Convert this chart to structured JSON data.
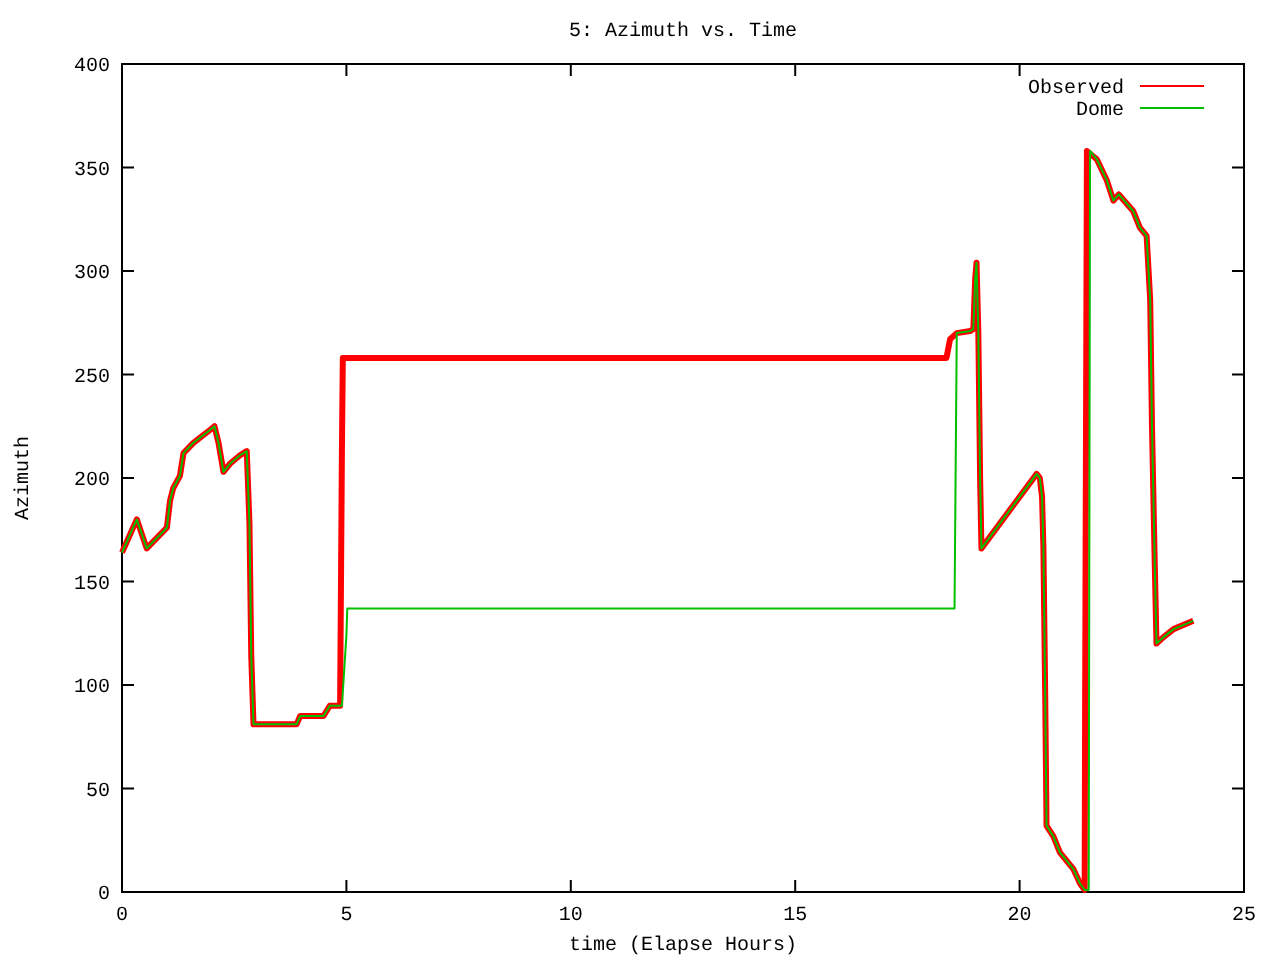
{
  "chart_data": {
    "type": "line",
    "title": "5: Azimuth vs. Time",
    "xlabel": "time (Elapse Hours)",
    "ylabel": "Azimuth",
    "xlim": [
      0,
      25
    ],
    "xticks": [
      0,
      5,
      10,
      15,
      20,
      25
    ],
    "ylim": [
      0,
      400
    ],
    "yticks": [
      0,
      50,
      100,
      150,
      200,
      250,
      300,
      350,
      400
    ],
    "grid": false,
    "legend": "top right",
    "line_style": "solid",
    "marker": "none",
    "series": [
      {
        "name": "Observed",
        "color": "#ff0000",
        "x": [
          0,
          0.33,
          0.55,
          1.0,
          1.07,
          1.14,
          1.29,
          1.37,
          1.59,
          1.89,
          2.06,
          2.15,
          2.26,
          2.41,
          2.63,
          2.78,
          2.84,
          2.88,
          2.93,
          3.89,
          3.97,
          4.49,
          4.63,
          4.86,
          4.9,
          4.92,
          18.37,
          18.45,
          18.6,
          18.9,
          18.97,
          19.01,
          19.04,
          19.08,
          19.12,
          19.15,
          20.38,
          20.45,
          20.5,
          20.53,
          20.57,
          20.6,
          20.75,
          20.9,
          21.2,
          21.35,
          21.45,
          21.46,
          21.5,
          21.72,
          21.94,
          22.09,
          22.21,
          22.53,
          22.68,
          22.83,
          22.91,
          22.95,
          23.01,
          23.05,
          23.2,
          23.43,
          23.87
        ],
        "values": [
          164,
          180,
          166,
          176,
          189,
          195,
          201,
          212,
          217,
          222,
          225,
          217,
          203,
          207,
          211,
          213,
          178,
          114,
          81,
          81,
          85,
          85,
          90,
          90,
          213,
          258,
          258,
          267,
          270,
          271,
          272,
          296,
          304,
          271,
          200,
          166,
          202,
          200,
          191,
          167,
          96,
          32,
          27,
          19,
          11,
          4,
          1,
          90,
          358,
          354,
          344,
          334,
          337,
          329,
          321,
          317,
          286,
          225,
          160,
          120,
          123,
          127,
          131
        ]
      },
      {
        "name": "Dome",
        "color": "#00c000",
        "x": [
          0,
          0.33,
          0.55,
          1.0,
          1.07,
          1.14,
          1.29,
          1.37,
          1.59,
          1.89,
          2.06,
          2.15,
          2.26,
          2.41,
          2.63,
          2.78,
          2.84,
          2.88,
          2.93,
          3.89,
          3.97,
          4.49,
          4.63,
          4.9,
          4.93,
          5.0,
          5.02,
          18.55,
          18.6,
          18.9,
          18.97,
          19.01,
          19.04,
          19.08,
          19.12,
          19.15,
          20.38,
          20.45,
          20.5,
          20.53,
          20.57,
          20.6,
          20.75,
          20.9,
          21.2,
          21.35,
          21.45,
          21.54,
          21.57,
          21.72,
          21.94,
          22.09,
          22.21,
          22.53,
          22.68,
          22.83,
          22.91,
          22.95,
          23.01,
          23.05,
          23.2,
          23.43,
          23.87
        ],
        "values": [
          164,
          180,
          166,
          176,
          189,
          195,
          201,
          212,
          217,
          222,
          225,
          217,
          203,
          207,
          211,
          213,
          178,
          114,
          81,
          81,
          85,
          85,
          90,
          90,
          100,
          124,
          137,
          137,
          270,
          271,
          272,
          296,
          304,
          271,
          200,
          166,
          202,
          200,
          191,
          167,
          96,
          32,
          27,
          19,
          11,
          4,
          1,
          1,
          358,
          354,
          344,
          334,
          337,
          329,
          321,
          317,
          286,
          225,
          160,
          120,
          123,
          127,
          131
        ]
      }
    ]
  }
}
